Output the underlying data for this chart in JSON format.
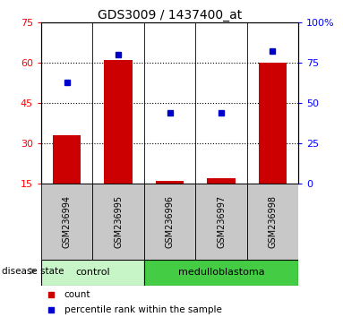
{
  "title": "GDS3009 / 1437400_at",
  "samples": [
    "GSM236994",
    "GSM236995",
    "GSM236996",
    "GSM236997",
    "GSM236998"
  ],
  "counts": [
    33,
    61,
    16,
    17,
    60
  ],
  "percentiles": [
    63,
    80,
    44,
    44,
    82
  ],
  "left_ylim": [
    15,
    75
  ],
  "left_yticks": [
    15,
    30,
    45,
    60,
    75
  ],
  "right_ylim": [
    0,
    100
  ],
  "right_yticks": [
    0,
    25,
    50,
    75,
    100
  ],
  "right_yticklabels": [
    "0",
    "25",
    "50",
    "75",
    "100%"
  ],
  "bar_color": "#cc0000",
  "dot_color": "#0000cc",
  "groups": [
    {
      "label": "control",
      "indices": [
        0,
        1
      ]
    },
    {
      "label": "medulloblastoma",
      "indices": [
        2,
        3,
        4
      ]
    }
  ],
  "group_band_color_control": "#c8f5c8",
  "group_band_color_medulloblastoma": "#44cc44",
  "sample_band_color": "#c8c8c8",
  "legend_count_label": "count",
  "legend_percentile_label": "percentile rank within the sample",
  "disease_state_label": "disease state"
}
